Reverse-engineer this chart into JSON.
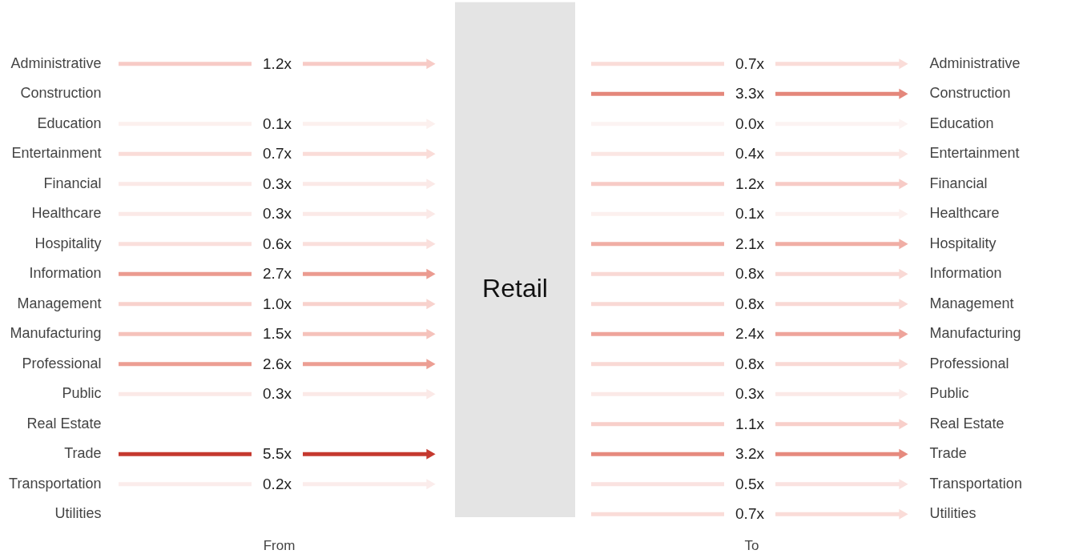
{
  "chart_data": {
    "type": "heatmap",
    "title": "Retail",
    "categories": [
      "From",
      "To"
    ],
    "y_categories": [
      "Administrative",
      "Construction",
      "Education",
      "Entertainment",
      "Financial",
      "Healthcare",
      "Hospitality",
      "Information",
      "Management",
      "Manufacturing",
      "Professional",
      "Public",
      "Real Estate",
      "Trade",
      "Transportation",
      "Utilities"
    ],
    "cells": [
      [
        1.2,
        0.7
      ],
      [
        null,
        3.3
      ],
      [
        0.1,
        0.0
      ],
      [
        0.7,
        0.4
      ],
      [
        0.3,
        1.2
      ],
      [
        0.3,
        0.1
      ],
      [
        0.6,
        2.1
      ],
      [
        2.7,
        0.8
      ],
      [
        1.0,
        0.8
      ],
      [
        1.5,
        2.4
      ],
      [
        2.6,
        0.8
      ],
      [
        0.3,
        0.3
      ],
      [
        null,
        1.1
      ],
      [
        5.5,
        3.2
      ],
      [
        0.2,
        0.5
      ],
      [
        null,
        0.7
      ]
    ],
    "cell_labels": [
      [
        "1.2x",
        "0.7x"
      ],
      [
        null,
        "3.3x"
      ],
      [
        "0.1x",
        "0.0x"
      ],
      [
        "0.7x",
        "0.4x"
      ],
      [
        "0.3x",
        "1.2x"
      ],
      [
        "0.3x",
        "0.1x"
      ],
      [
        "0.6x",
        "2.1x"
      ],
      [
        "2.7x",
        "0.8x"
      ],
      [
        "1.0x",
        "0.8x"
      ],
      [
        "1.5x",
        "2.4x"
      ],
      [
        "2.6x",
        "0.8x"
      ],
      [
        "0.3x",
        "0.3x"
      ],
      [
        null,
        "1.1x"
      ],
      [
        "5.5x",
        "3.2x"
      ],
      [
        "0.2x",
        "0.5x"
      ],
      [
        null,
        "0.7x"
      ]
    ]
  }
}
